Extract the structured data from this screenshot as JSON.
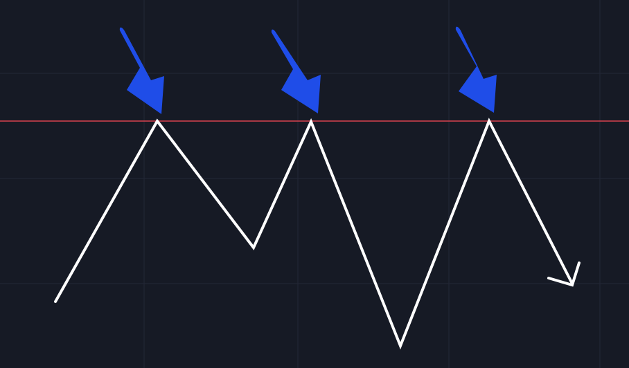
{
  "diagram": {
    "description_text": "",
    "colors": {
      "background": "#161a25",
      "grid": "#232836",
      "resistance_line": "#d9434f",
      "price_path": "#ffffff",
      "markers": "#1f4de8"
    },
    "icons": {
      "marker": "arrow-down-right-icon",
      "path_end": "arrowhead-icon"
    },
    "structure": {
      "touches_of_resistance": 3,
      "final_direction": "down"
    }
  }
}
